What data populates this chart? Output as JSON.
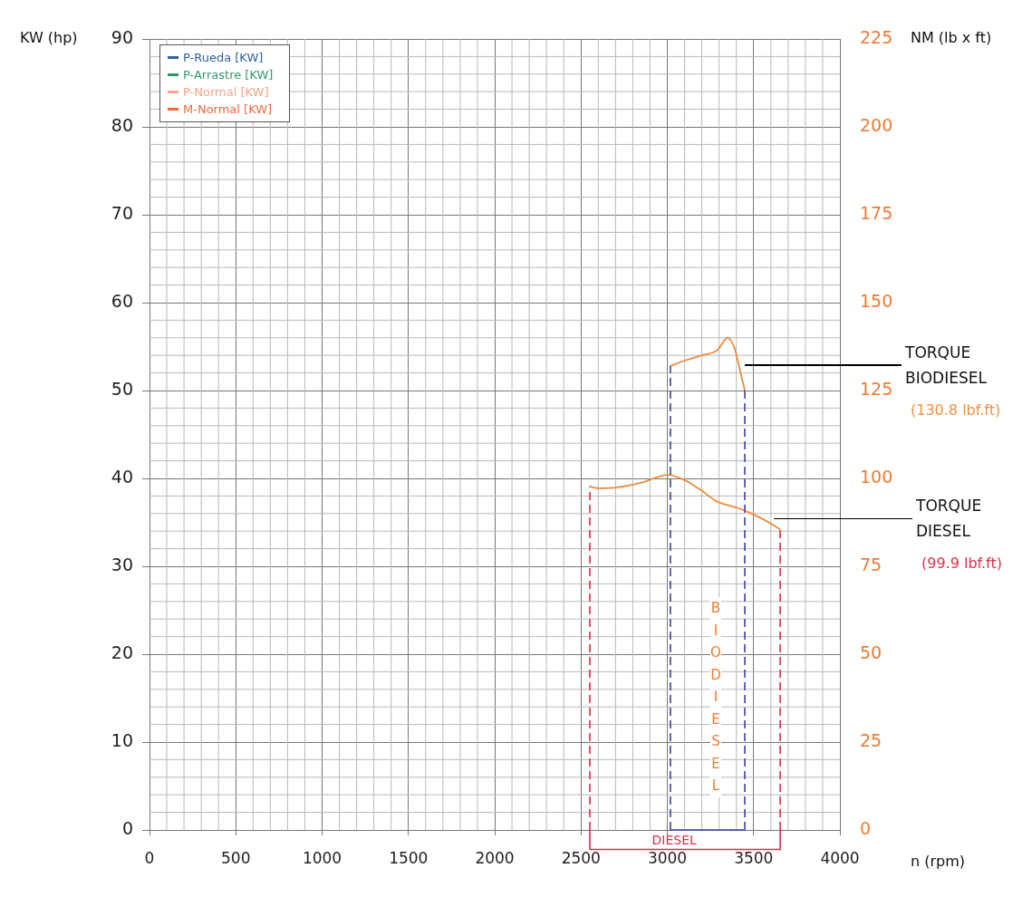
{
  "chart_data": {
    "type": "line",
    "xlabel": "n (rpm)",
    "ylabel": "KW (hp)",
    "y2label": "NM (lb x ft)",
    "xlim": [
      0,
      4000
    ],
    "xticks": [
      0,
      500,
      1000,
      1500,
      2000,
      2500,
      3000,
      3500,
      4000
    ],
    "ylim": [
      0,
      90
    ],
    "yticks": [
      0,
      10,
      20,
      30,
      40,
      50,
      60,
      70,
      80,
      90
    ],
    "y2lim": [
      0,
      225
    ],
    "y2ticks": [
      0,
      25,
      50,
      75,
      100,
      125,
      150,
      175,
      200,
      225
    ],
    "grid": true,
    "legend": "top left",
    "marker": "none",
    "line_style": "solid",
    "series": [
      {
        "name": "P-Rueda [KW]",
        "color": "#2e5fa0"
      },
      {
        "name": "P-Arrastre [KW]",
        "color": "#2e9a6a"
      },
      {
        "name": "P-Normal [KW]",
        "color": "#f4a58a"
      },
      {
        "name": "M-Normal [KW]",
        "color": "#f06a3c"
      },
      {
        "color": "#f08a3c",
        "axis": "y2",
        "x": [
          3018,
          3100,
          3200,
          3290,
          3349,
          3390,
          3420,
          3449
        ],
        "values": [
          132,
          133.5,
          135,
          136.5,
          140,
          137,
          131,
          125
        ]
      },
      {
        "color": "#f08a3c",
        "axis": "y2",
        "x": [
          2551,
          2600,
          2703,
          2850,
          3003,
          3100,
          3200,
          3281,
          3400,
          3465,
          3550,
          3654
        ],
        "values": [
          97.7,
          97.2,
          97.4,
          98.8,
          101,
          99.5,
          96.5,
          93.6,
          91.7,
          90.5,
          88.5,
          85.5
        ]
      }
    ],
    "ref_lines": [
      {
        "axis": "x",
        "value": 3018,
        "color": "#3a3fb0",
        "line_style": "dashed"
      },
      {
        "axis": "x",
        "value": 3449,
        "color": "#3a3fb0",
        "line_style": "dashed"
      },
      {
        "axis": "x",
        "value": 2551,
        "color": "#d8304a",
        "line_style": "dashed"
      },
      {
        "axis": "x",
        "value": 3654,
        "color": "#d8304a",
        "line_style": "dashed"
      }
    ],
    "annotations": [
      "TORQUE BIODIESEL",
      "TORQUE DIESEL",
      "(130.8 lbf.ft)",
      "(99.9 lbf.ft)",
      "BIODIESEL",
      "DIESEL"
    ]
  }
}
